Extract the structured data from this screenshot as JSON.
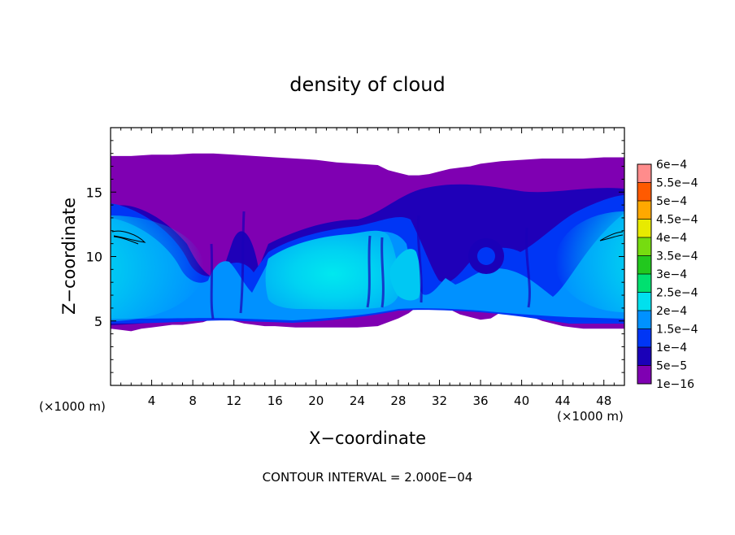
{
  "chart_data": {
    "type": "heatmap",
    "title": "density of cloud",
    "xlabel": "X−coordinate",
    "ylabel": "Z−coordinate",
    "x_unit_left": "(×1000 m)",
    "x_unit_right": "(×1000 m)",
    "footer": "CONTOUR INTERVAL = 2.000E−04",
    "xlim": [
      0,
      50
    ],
    "ylim": [
      0,
      20
    ],
    "x_ticks": [
      {
        "value": 4,
        "label": "4"
      },
      {
        "value": 8,
        "label": "8"
      },
      {
        "value": 12,
        "label": "12"
      },
      {
        "value": 16,
        "label": "16"
      },
      {
        "value": 20,
        "label": "20"
      },
      {
        "value": 24,
        "label": "24"
      },
      {
        "value": 28,
        "label": "28"
      },
      {
        "value": 32,
        "label": "32"
      },
      {
        "value": 36,
        "label": "36"
      },
      {
        "value": 40,
        "label": "40"
      },
      {
        "value": 44,
        "label": "44"
      },
      {
        "value": 48,
        "label": "48"
      }
    ],
    "y_ticks": [
      {
        "value": 5,
        "label": "5"
      },
      {
        "value": 10,
        "label": "10"
      },
      {
        "value": 15,
        "label": "15"
      }
    ],
    "colorbar": [
      {
        "label": "1e−16",
        "color": "#7f00b2"
      },
      {
        "label": "5e−5",
        "color": "#1a00b8"
      },
      {
        "label": "1e−4",
        "color": "#0036f5"
      },
      {
        "label": "1.5e−4",
        "color": "#0091ff"
      },
      {
        "label": "2e−4",
        "color": "#00e0ee"
      },
      {
        "label": "2.5e−4",
        "color": "#00e070"
      },
      {
        "label": "3e−4",
        "color": "#22c81e"
      },
      {
        "label": "3.5e−4",
        "color": "#76dc10"
      },
      {
        "label": "4e−4",
        "color": "#e8ea00"
      },
      {
        "label": "4.5e−4",
        "color": "#ffa800"
      },
      {
        "label": "5e−4",
        "color": "#ff5a00"
      },
      {
        "label": "5.5e−4",
        "color": "#ff2a1a"
      },
      {
        "label": "6e−4",
        "color": "#ff8c8c"
      }
    ],
    "cloud_extent": {
      "top": [
        [
          0,
          17.8
        ],
        [
          2,
          17.8
        ],
        [
          4,
          17.9
        ],
        [
          6,
          17.9
        ],
        [
          8,
          18.0
        ],
        [
          10,
          18.0
        ],
        [
          12,
          17.9
        ],
        [
          14,
          17.8
        ],
        [
          16,
          17.7
        ],
        [
          18,
          17.6
        ],
        [
          20,
          17.5
        ],
        [
          22,
          17.3
        ],
        [
          24,
          17.2
        ],
        [
          26,
          17.1
        ],
        [
          27,
          16.7
        ],
        [
          28,
          16.5
        ],
        [
          29,
          16.3
        ],
        [
          30,
          16.3
        ],
        [
          31,
          16.4
        ],
        [
          32,
          16.6
        ],
        [
          33,
          16.8
        ],
        [
          34,
          16.9
        ],
        [
          35,
          17.0
        ],
        [
          36,
          17.2
        ],
        [
          38,
          17.4
        ],
        [
          40,
          17.5
        ],
        [
          42,
          17.6
        ],
        [
          44,
          17.6
        ],
        [
          46,
          17.6
        ],
        [
          48,
          17.7
        ],
        [
          50,
          17.7
        ]
      ],
      "bottom": [
        [
          0,
          4.4
        ],
        [
          1,
          4.3
        ],
        [
          2,
          4.2
        ],
        [
          3,
          4.4
        ],
        [
          4,
          4.5
        ],
        [
          5,
          4.6
        ],
        [
          6,
          4.7
        ],
        [
          7,
          4.7
        ],
        [
          8,
          4.8
        ],
        [
          9,
          4.9
        ],
        [
          10,
          5.2
        ],
        [
          11,
          5.3
        ],
        [
          12,
          5.0
        ],
        [
          13,
          4.8
        ],
        [
          14,
          4.7
        ],
        [
          15,
          4.6
        ],
        [
          16,
          4.6
        ],
        [
          18,
          4.5
        ],
        [
          20,
          4.5
        ],
        [
          22,
          4.5
        ],
        [
          24,
          4.5
        ],
        [
          26,
          4.6
        ],
        [
          28,
          5.2
        ],
        [
          29,
          5.6
        ],
        [
          30,
          6.2
        ],
        [
          31,
          6.3
        ],
        [
          32,
          6.0
        ],
        [
          33,
          5.9
        ],
        [
          34,
          5.5
        ],
        [
          35,
          5.3
        ],
        [
          36,
          5.1
        ],
        [
          37,
          5.2
        ],
        [
          38,
          5.7
        ],
        [
          39,
          5.8
        ],
        [
          40,
          5.6
        ],
        [
          41,
          5.3
        ],
        [
          42,
          5.0
        ],
        [
          43,
          4.8
        ],
        [
          44,
          4.6
        ],
        [
          45,
          4.5
        ],
        [
          46,
          4.4
        ],
        [
          48,
          4.4
        ],
        [
          50,
          4.4
        ]
      ]
    }
  }
}
